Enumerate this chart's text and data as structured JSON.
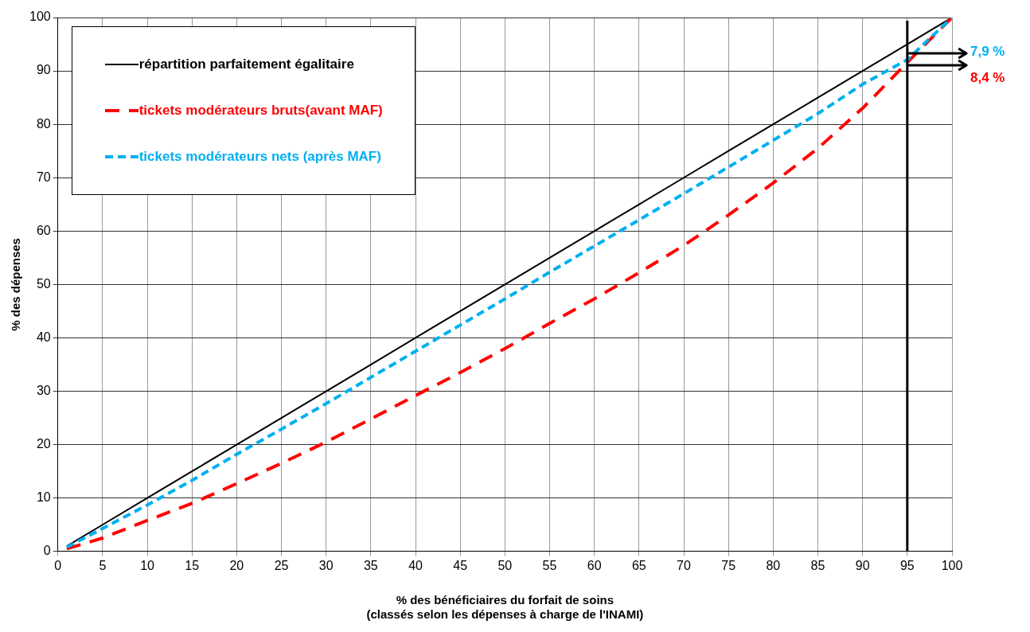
{
  "chart_data": {
    "type": "line",
    "xlabel": "% des bénéficiaires du forfait de soins\n(classés selon les dépenses à charge de l'INAMI)",
    "ylabel": "% des dépenses",
    "x": [
      1,
      5,
      10,
      15,
      20,
      25,
      30,
      35,
      40,
      45,
      50,
      55,
      60,
      65,
      70,
      75,
      80,
      85,
      90,
      95,
      100
    ],
    "series": [
      {
        "name": "répartition parfaitement égalitaire",
        "color": "#000000",
        "line_style": "solid",
        "values": [
          1,
          5,
          10,
          15,
          20,
          25,
          30,
          35,
          40,
          45,
          50,
          55,
          60,
          65,
          70,
          75,
          80,
          85,
          90,
          95,
          100
        ]
      },
      {
        "name": "tickets modérateurs bruts(avant MAF)",
        "color": "#ff0000",
        "line_style": "dashed",
        "values": [
          0.5,
          2.5,
          5.8,
          9,
          12.7,
          16.5,
          20.5,
          24.8,
          29.2,
          33.5,
          38,
          42.7,
          47.3,
          52.2,
          57.3,
          63,
          69,
          75.5,
          83,
          91.6,
          100
        ]
      },
      {
        "name": "tickets modérateurs nets (après MAF)",
        "color": "#00b0f0",
        "line_style": "dotted",
        "values": [
          0.8,
          4.3,
          8.7,
          13.3,
          18.2,
          22.9,
          27.7,
          32.6,
          37.5,
          42.4,
          47.3,
          52.3,
          57.2,
          62.1,
          67,
          72,
          77,
          82,
          87.5,
          92.1,
          100
        ]
      }
    ],
    "annotations": [
      {
        "text": "7,9 %",
        "x": 95,
        "y": 92.1
      },
      {
        "text": "8,4 %",
        "x": 95,
        "y": 91.6
      }
    ],
    "ref_lines": [
      {
        "axis": "x",
        "value": 95,
        "color": "#000000"
      }
    ],
    "xlim": [
      0,
      100
    ],
    "xticks": [
      0,
      5,
      10,
      15,
      20,
      25,
      30,
      35,
      40,
      45,
      50,
      55,
      60,
      65,
      70,
      75,
      80,
      85,
      90,
      95,
      100
    ],
    "ylim": [
      0,
      100
    ],
    "yticks": [
      0,
      10,
      20,
      30,
      40,
      50,
      60,
      70,
      80,
      90,
      100
    ],
    "grid": true,
    "legend": "top left",
    "marker": "none"
  }
}
